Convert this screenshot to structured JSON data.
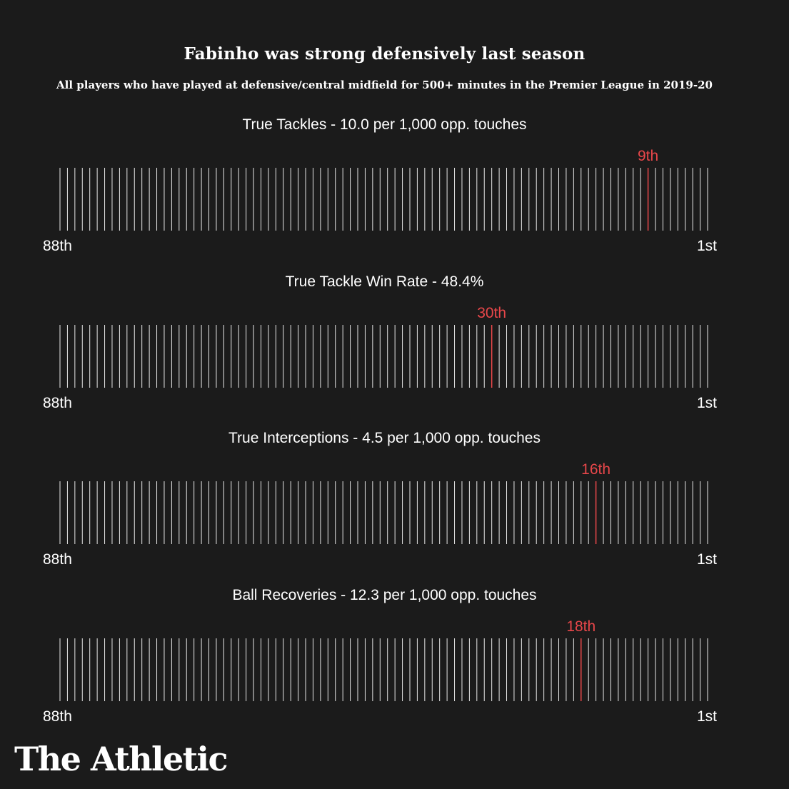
{
  "title": "Fabinho was strong defensively last season",
  "subtitle": "All players who have played at defensive/central midfield for 500+ minutes in the Premier League in 2019-20",
  "brand": "The Athletic",
  "colors": {
    "background": "#1b1b1b",
    "tick": "#e8e8e8",
    "highlight": "#e8474a"
  },
  "chart_data": {
    "type": "rank-strip",
    "total_players": 88,
    "axis_left_label": "88th",
    "axis_right_label": "1st",
    "panels": [
      {
        "title": "True Tackles - 10.0 per 1,000 opp. touches",
        "rank": 9,
        "rank_label": "9th"
      },
      {
        "title": "True Tackle Win Rate - 48.4%",
        "rank": 30,
        "rank_label": "30th"
      },
      {
        "title": "True Interceptions - 4.5 per 1,000 opp. touches",
        "rank": 16,
        "rank_label": "16th"
      },
      {
        "title": "Ball Recoveries - 12.3 per 1,000 opp. touches",
        "rank": 18,
        "rank_label": "18th"
      }
    ]
  }
}
